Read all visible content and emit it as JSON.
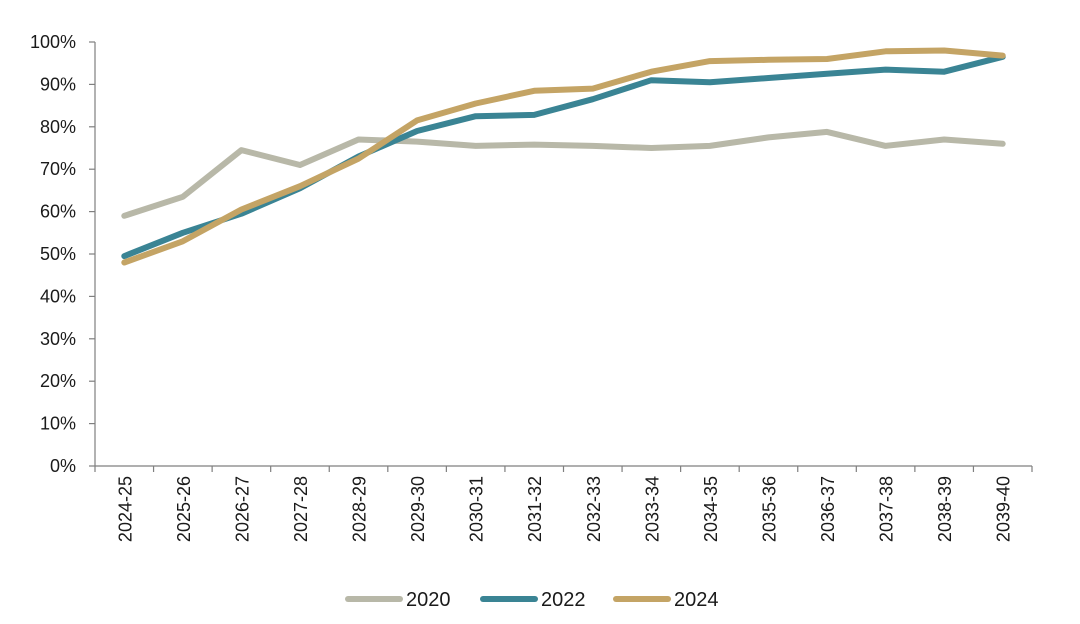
{
  "chart_data": {
    "type": "line",
    "categories": [
      "2024-25",
      "2025-26",
      "2026-27",
      "2027-28",
      "2028-29",
      "2029-30",
      "2030-31",
      "2031-32",
      "2032-33",
      "2033-34",
      "2034-35",
      "2035-36",
      "2036-37",
      "2037-38",
      "2038-39",
      "2039-40"
    ],
    "y_ticks": [
      "0%",
      "10%",
      "20%",
      "30%",
      "40%",
      "50%",
      "60%",
      "70%",
      "80%",
      "90%",
      "100%"
    ],
    "ylim": [
      0,
      100
    ],
    "y_unit": "%",
    "grid": false,
    "legend_position": "bottom",
    "series": [
      {
        "name": "2020",
        "color": "#b8b8a8",
        "values": [
          59,
          63.5,
          74.5,
          71,
          77,
          76.5,
          75.5,
          75.8,
          75.5,
          75,
          75.5,
          77.5,
          78.8,
          75.5,
          77,
          76
        ]
      },
      {
        "name": "2022",
        "color": "#3a8494",
        "values": [
          49.5,
          55,
          59.5,
          65.5,
          73,
          79,
          82.5,
          82.8,
          86.5,
          91,
          90.5,
          91.5,
          92.5,
          93.5,
          93,
          96.5
        ]
      },
      {
        "name": "2024",
        "color": "#c4a465",
        "values": [
          48,
          53,
          60.5,
          66,
          72.5,
          81.5,
          85.5,
          88.5,
          89,
          93,
          95.5,
          95.8,
          96,
          97.8,
          98,
          96.8
        ]
      }
    ]
  }
}
